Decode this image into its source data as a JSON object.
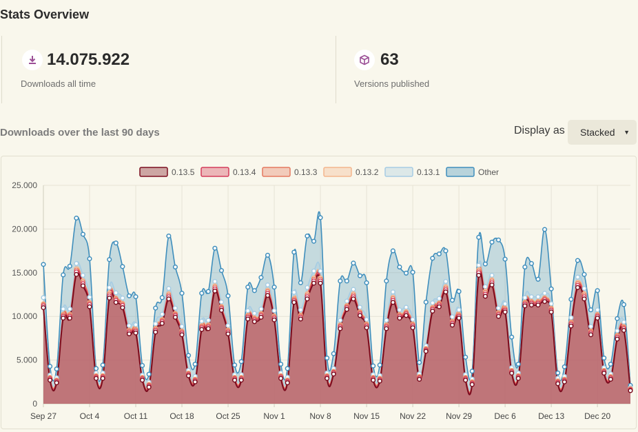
{
  "page_title": "Stats Overview",
  "stats": {
    "downloads": {
      "value": "14.075.922",
      "label": "Downloads all time",
      "icon": "download-icon"
    },
    "versions": {
      "value": "63",
      "label": "Versions published",
      "icon": "package-icon"
    }
  },
  "section_title": "Downloads over the last 90 days",
  "display": {
    "label": "Display as",
    "selected": "Stacked"
  },
  "colors": {
    "accent_purple": "#9b4f96",
    "v0135": "#7b0d1e",
    "v0134": "#d43b5a",
    "v0133": "#e5795f",
    "v0132": "#f4b58c",
    "v0131": "#a6cce3",
    "other": "#3f8ebc"
  },
  "chart_data": {
    "type": "area",
    "stacked": true,
    "ylim": [
      0,
      25000
    ],
    "y_ticks": [
      "0",
      "5.000",
      "10.000",
      "15.000",
      "20.000",
      "25.000"
    ],
    "x_ticks": [
      {
        "i": 0,
        "label": "Sep 27"
      },
      {
        "i": 7,
        "label": "Oct 4"
      },
      {
        "i": 14,
        "label": "Oct 11"
      },
      {
        "i": 21,
        "label": "Oct 18"
      },
      {
        "i": 28,
        "label": "Oct 25"
      },
      {
        "i": 35,
        "label": "Nov 1"
      },
      {
        "i": 42,
        "label": "Nov 8"
      },
      {
        "i": 49,
        "label": "Nov 15"
      },
      {
        "i": 56,
        "label": "Nov 22"
      },
      {
        "i": 63,
        "label": "Nov 29"
      },
      {
        "i": 70,
        "label": "Dec 6"
      },
      {
        "i": 77,
        "label": "Dec 13"
      },
      {
        "i": 84,
        "label": "Dec 20"
      }
    ],
    "legend": [
      "0.13.5",
      "0.13.4",
      "0.13.3",
      "0.13.2",
      "0.13.1",
      "Other"
    ],
    "series": [
      {
        "name": "0.13.5",
        "color": "#7b0d1e",
        "values": [
          11000,
          2700,
          2400,
          9800,
          9800,
          14800,
          13500,
          11100,
          2900,
          2900,
          12100,
          11600,
          11000,
          8000,
          8100,
          2700,
          1900,
          8200,
          9200,
          12000,
          9900,
          7900,
          3200,
          2500,
          8500,
          8600,
          12900,
          10700,
          8000,
          2700,
          2700,
          9700,
          9400,
          9900,
          12400,
          9600,
          2900,
          2400,
          11600,
          9700,
          12000,
          13800,
          13800,
          2900,
          3400,
          8600,
          10800,
          12000,
          10100,
          8700,
          2700,
          2600,
          8600,
          11600,
          9800,
          10100,
          8700,
          2800,
          6000,
          10600,
          11100,
          12800,
          9000,
          9800,
          2700,
          2200,
          14700,
          12300,
          13600,
          10000,
          10500,
          3500,
          2900,
          11200,
          11300,
          11300,
          11700,
          10500,
          2300,
          2500,
          8900,
          13300,
          12000,
          7900,
          9800,
          3500,
          2800,
          7400,
          8400,
          1500
        ]
      },
      {
        "name": "0.13.4",
        "color": "#d43b5a",
        "values": [
          200,
          150,
          150,
          200,
          200,
          300,
          250,
          250,
          150,
          150,
          250,
          250,
          250,
          200,
          200,
          150,
          150,
          200,
          200,
          250,
          200,
          200,
          150,
          150,
          200,
          200,
          250,
          200,
          200,
          150,
          150,
          200,
          200,
          200,
          250,
          200,
          150,
          150,
          200,
          200,
          250,
          250,
          250,
          150,
          150,
          200,
          200,
          250,
          200,
          200,
          150,
          150,
          200,
          250,
          200,
          200,
          200,
          150,
          150,
          200,
          200,
          250,
          200,
          200,
          150,
          150,
          300,
          250,
          250,
          200,
          200,
          150,
          150,
          200,
          200,
          200,
          200,
          200,
          150,
          150,
          200,
          250,
          250,
          200,
          200,
          150,
          150,
          200,
          200,
          100
        ]
      },
      {
        "name": "0.13.3",
        "color": "#e5795f",
        "values": [
          150,
          100,
          100,
          150,
          150,
          200,
          200,
          150,
          100,
          100,
          200,
          150,
          150,
          150,
          150,
          100,
          100,
          150,
          150,
          200,
          150,
          150,
          100,
          100,
          150,
          150,
          200,
          150,
          150,
          100,
          100,
          150,
          150,
          150,
          200,
          150,
          100,
          100,
          150,
          150,
          200,
          200,
          200,
          100,
          100,
          150,
          150,
          200,
          150,
          150,
          100,
          100,
          150,
          200,
          150,
          150,
          150,
          100,
          100,
          150,
          150,
          200,
          150,
          150,
          100,
          100,
          200,
          200,
          200,
          150,
          150,
          100,
          100,
          150,
          150,
          150,
          150,
          150,
          100,
          100,
          150,
          200,
          200,
          150,
          150,
          100,
          100,
          150,
          150,
          80
        ]
      },
      {
        "name": "0.13.2",
        "color": "#f4b58c",
        "values": [
          100,
          80,
          80,
          100,
          100,
          150,
          150,
          100,
          80,
          80,
          150,
          100,
          100,
          100,
          100,
          80,
          80,
          100,
          100,
          150,
          100,
          100,
          80,
          80,
          100,
          100,
          150,
          100,
          100,
          80,
          80,
          100,
          100,
          100,
          150,
          100,
          80,
          80,
          100,
          100,
          150,
          150,
          150,
          80,
          80,
          100,
          100,
          150,
          100,
          100,
          80,
          80,
          100,
          150,
          100,
          100,
          100,
          80,
          80,
          100,
          100,
          150,
          100,
          100,
          80,
          80,
          150,
          150,
          150,
          100,
          100,
          80,
          80,
          100,
          100,
          100,
          100,
          100,
          80,
          80,
          100,
          150,
          150,
          100,
          100,
          80,
          80,
          100,
          100,
          60
        ]
      },
      {
        "name": "0.13.1",
        "color": "#a6cce3",
        "values": [
          700,
          250,
          250,
          600,
          600,
          600,
          600,
          600,
          300,
          300,
          600,
          600,
          600,
          500,
          500,
          250,
          250,
          500,
          600,
          600,
          600,
          500,
          300,
          300,
          500,
          500,
          500,
          500,
          500,
          300,
          300,
          500,
          500,
          500,
          600,
          600,
          300,
          300,
          700,
          600,
          700,
          800,
          800,
          300,
          300,
          500,
          500,
          500,
          500,
          500,
          300,
          300,
          500,
          600,
          500,
          500,
          500,
          300,
          300,
          500,
          500,
          600,
          500,
          500,
          300,
          300,
          500,
          500,
          500,
          500,
          500,
          300,
          300,
          500,
          500,
          500,
          500,
          500,
          300,
          300,
          500,
          600,
          600,
          500,
          500,
          300,
          300,
          500,
          500,
          100
        ]
      },
      {
        "name": "Other",
        "color": "#3f8ebc",
        "values": [
          3800,
          1000,
          1000,
          3900,
          4900,
          5200,
          4700,
          4400,
          500,
          900,
          3200,
          5700,
          3600,
          3400,
          3200,
          1100,
          900,
          1800,
          1900,
          6000,
          4700,
          3800,
          1700,
          1400,
          3200,
          3300,
          3800,
          3600,
          3400,
          1100,
          1500,
          2700,
          2600,
          3600,
          3400,
          2700,
          1000,
          1000,
          4600,
          3100,
          5900,
          3400,
          6100,
          1700,
          1700,
          4500,
          2300,
          3000,
          3600,
          4200,
          1000,
          1200,
          4500,
          4700,
          4900,
          3900,
          5400,
          1300,
          5000,
          5100,
          5100,
          3500,
          1900,
          2100,
          2000,
          900,
          3200,
          2600,
          3800,
          7800,
          5100,
          3500,
          1000,
          3500,
          3800,
          2000,
          7300,
          1700,
          600,
          1100,
          2100,
          1900,
          1600,
          1900,
          2200,
          1100,
          1100,
          1400,
          2000,
          260
        ]
      }
    ]
  }
}
